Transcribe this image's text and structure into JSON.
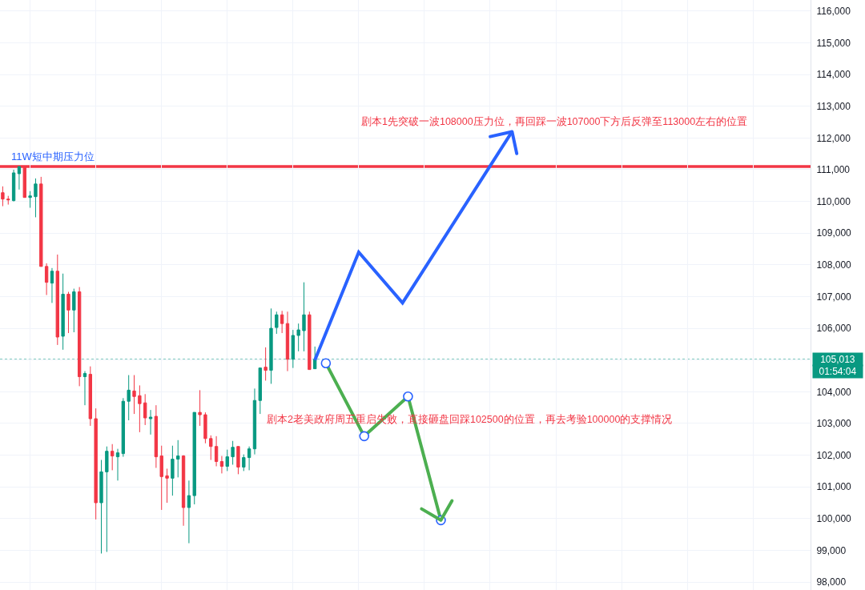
{
  "chart_data": {
    "type": "candlestick",
    "categories": [
      null,
      null,
      null,
      null,
      null,
      null,
      null,
      null,
      null,
      null,
      null,
      null,
      null,
      null,
      null,
      null,
      null,
      null,
      null,
      null,
      null,
      null,
      null,
      null,
      null,
      null,
      null,
      null,
      null,
      null,
      null,
      null,
      null,
      null,
      null,
      null,
      null,
      null,
      null,
      null,
      null,
      null,
      null,
      null,
      null,
      null,
      null,
      null,
      null,
      null,
      null,
      null,
      null,
      null,
      null,
      null,
      null,
      null,
      null,
      null,
      null,
      null,
      null,
      null,
      null,
      null,
      null,
      null,
      null,
      null,
      null,
      null,
      null,
      null,
      null,
      null,
      null,
      null,
      null,
      null,
      null,
      null,
      null,
      null,
      null,
      null,
      null,
      null,
      null,
      null,
      null,
      null,
      null,
      null,
      null,
      null,
      null,
      null,
      null,
      null,
      null,
      null,
      null,
      null,
      null,
      null,
      null,
      null,
      null,
      null,
      null,
      null,
      null,
      null,
      null,
      null,
      null,
      null,
      null,
      null,
      null,
      null,
      null,
      null,
      null,
      null,
      null,
      null,
      null,
      null,
      null,
      null,
      null,
      null,
      null,
      null,
      null,
      null,
      null,
      null,
      null,
      null,
      null,
      null,
      null,
      null,
      null,
      null
    ],
    "ohlc": [
      [
        110275,
        110475,
        109850,
        110075
      ],
      [
        110075,
        110175,
        109900,
        110050
      ],
      [
        110025,
        111000,
        110000,
        110900
      ],
      [
        110875,
        111100,
        110375,
        111100
      ],
      [
        111100,
        111125,
        110125,
        110125
      ],
      [
        110125,
        110325,
        109800,
        110175
      ],
      [
        110150,
        110725,
        109500,
        110550
      ],
      [
        110550,
        110775,
        107950,
        107950
      ],
      [
        107950,
        108050,
        107050,
        107450
      ],
      [
        107425,
        107900,
        106800,
        107800
      ],
      [
        107800,
        108325,
        105475,
        105725
      ],
      [
        105750,
        107725,
        105325,
        107075
      ],
      [
        107075,
        107150,
        105850,
        106575
      ],
      [
        106575,
        107250,
        105875,
        107150
      ],
      [
        107150,
        107300,
        104175,
        104475
      ],
      [
        104475,
        104650,
        103575,
        104575
      ],
      [
        104550,
        104800,
        102925,
        103150
      ],
      [
        103150,
        103475,
        99975,
        100500
      ],
      [
        100500,
        101850,
        98900,
        101475
      ],
      [
        101475,
        102275,
        98950,
        102125
      ],
      [
        102125,
        102350,
        101525,
        101975
      ],
      [
        101950,
        102200,
        101200,
        102075
      ],
      [
        102050,
        103800,
        101950,
        103700
      ],
      [
        103700,
        104525,
        103100,
        104050
      ],
      [
        104025,
        104525,
        103300,
        103850
      ],
      [
        103875,
        104200,
        102725,
        103625
      ],
      [
        103650,
        103925,
        102950,
        103175
      ],
      [
        103150,
        103425,
        102650,
        103200
      ],
      [
        103225,
        103575,
        101600,
        101950
      ],
      [
        101975,
        102300,
        100275,
        101325
      ],
      [
        101350,
        101575,
        100500,
        101275
      ],
      [
        101275,
        102300,
        100725,
        101875
      ],
      [
        101875,
        102475,
        101300,
        101975
      ],
      [
        101975,
        102000,
        99775,
        100350
      ],
      [
        100350,
        101200,
        99225,
        100725
      ],
      [
        100725,
        103350,
        100450,
        103350
      ],
      [
        103350,
        104050,
        102925,
        103275
      ],
      [
        103275,
        103350,
        102375,
        102525
      ],
      [
        102525,
        102625,
        101850,
        102275
      ],
      [
        102275,
        102600,
        101650,
        101800
      ],
      [
        101800,
        101975,
        101425,
        101650
      ],
      [
        101650,
        102175,
        101500,
        101950
      ],
      [
        101950,
        102450,
        101700,
        102250
      ],
      [
        102275,
        102275,
        101400,
        101625
      ],
      [
        101625,
        102025,
        101500,
        101925
      ],
      [
        101925,
        102275,
        101525,
        102200
      ],
      [
        102200,
        104100,
        102025,
        103725
      ],
      [
        103725,
        104750,
        103300,
        104750
      ],
      [
        104775,
        105400,
        104350,
        104675
      ],
      [
        104675,
        106625,
        104250,
        106000
      ],
      [
        106025,
        106525,
        105825,
        106425
      ],
      [
        106425,
        106550,
        105850,
        106150
      ],
      [
        106150,
        106525,
        104650,
        105025
      ],
      [
        105025,
        105950,
        104750,
        105775
      ],
      [
        105775,
        106150,
        105275,
        105950
      ],
      [
        105925,
        107450,
        105275,
        106425
      ],
      [
        106425,
        106525,
        104700,
        104700
      ],
      [
        104725,
        105425,
        104725,
        105013
      ],
      null,
      null,
      null,
      null,
      null,
      null,
      null,
      null,
      null,
      null,
      null,
      null,
      null,
      null,
      null,
      null,
      null,
      null,
      null,
      null,
      null,
      null,
      null,
      null,
      null,
      null,
      null,
      null,
      null,
      null,
      null,
      null,
      null,
      null,
      null,
      null,
      null,
      null,
      null,
      null,
      null,
      null,
      null,
      null,
      null,
      null,
      null,
      null,
      null,
      null,
      null,
      null,
      null,
      null,
      null,
      null,
      null,
      null,
      null,
      null,
      null,
      null,
      null,
      null,
      null,
      null,
      null,
      null,
      null,
      null,
      null,
      null,
      null,
      null,
      null,
      null,
      null,
      null,
      null,
      null,
      null,
      null,
      null,
      null,
      null,
      null,
      null,
      null,
      null,
      null
    ],
    "colors": [
      "#f23645",
      "#f23645",
      "#089981",
      "#089981",
      "#f23645",
      "#089981",
      "#089981",
      "#f23645",
      "#f23645",
      "#089981",
      "#f23645",
      "#089981",
      "#f23645",
      "#089981",
      "#f23645",
      "#089981",
      "#f23645",
      "#f23645",
      "#089981",
      "#089981",
      "#f23645",
      "#089981",
      "#089981",
      "#089981",
      "#f23645",
      "#f23645",
      "#f23645",
      "#089981",
      "#f23645",
      "#f23645",
      "#f23645",
      "#089981",
      "#089981",
      "#f23645",
      "#089981",
      "#089981",
      "#f23645",
      "#f23645",
      "#f23645",
      "#f23645",
      "#f23645",
      "#089981",
      "#089981",
      "#f23645",
      "#089981",
      "#089981",
      "#089981",
      "#089981",
      "#f23645",
      "#089981",
      "#089981",
      "#f23645",
      "#f23645",
      "#089981",
      "#089981",
      "#089981",
      "#f23645",
      "#089981",
      null,
      null,
      null,
      null,
      null,
      null,
      null,
      null,
      null,
      null,
      null,
      null,
      null,
      null,
      null,
      null,
      null,
      null,
      null,
      null,
      null,
      null,
      null,
      null,
      null,
      null,
      null,
      null,
      null,
      null,
      null,
      null,
      null,
      null,
      null,
      null,
      null,
      null,
      null,
      null,
      null,
      null,
      null,
      null,
      null,
      null,
      null,
      null,
      null,
      null,
      null,
      null,
      null,
      null,
      null,
      null,
      null,
      null,
      null,
      null,
      null,
      null,
      null,
      null,
      null,
      null,
      null,
      null,
      null,
      null,
      null,
      null,
      null,
      null,
      null,
      null,
      null,
      null,
      null,
      null,
      null,
      null,
      null,
      null,
      null,
      null,
      null,
      null,
      null,
      null
    ],
    "series": [
      {
        "type": "line",
        "color": "#2962ff",
        "values": [
          null,
          null,
          null,
          null,
          null,
          null,
          null,
          null,
          null,
          null,
          null,
          null,
          null,
          null,
          null,
          null,
          null,
          null,
          null,
          null,
          null,
          null,
          null,
          null,
          null,
          null,
          null,
          null,
          null,
          null,
          null,
          null,
          null,
          null,
          null,
          null,
          null,
          null,
          null,
          null,
          null,
          null,
          null,
          null,
          null,
          null,
          null,
          null,
          null,
          null,
          null,
          null,
          null,
          null,
          null,
          null,
          null,
          105000,
          null,
          null,
          null,
          null,
          null,
          null,
          null,
          108400,
          null,
          null,
          null,
          null,
          null,
          null,
          null,
          106800,
          null,
          null,
          null,
          null,
          null,
          null,
          null,
          null,
          null,
          null,
          null,
          null,
          null,
          null,
          null,
          null,
          null,
          null,
          null,
          112200,
          null,
          null,
          null,
          null,
          null,
          null,
          null,
          null,
          null,
          null,
          null,
          null,
          null,
          null,
          null,
          null,
          null,
          null,
          null,
          null,
          null,
          null,
          null,
          null,
          null,
          null,
          null,
          null,
          null,
          null,
          null,
          null,
          null,
          null,
          null,
          null,
          null,
          null,
          null,
          null,
          null,
          null,
          null,
          null,
          null,
          null,
          null,
          null,
          null,
          null,
          null,
          null,
          null,
          null
        ]
      },
      {
        "type": "line",
        "color": "#4caf50",
        "marker": "circle",
        "values": [
          null,
          null,
          null,
          null,
          null,
          null,
          null,
          null,
          null,
          null,
          null,
          null,
          null,
          null,
          null,
          null,
          null,
          null,
          null,
          null,
          null,
          null,
          null,
          null,
          null,
          null,
          null,
          null,
          null,
          null,
          null,
          null,
          null,
          null,
          null,
          null,
          null,
          null,
          null,
          null,
          null,
          null,
          null,
          null,
          null,
          null,
          null,
          null,
          null,
          null,
          null,
          null,
          null,
          null,
          null,
          null,
          null,
          null,
          null,
          104900,
          null,
          null,
          null,
          null,
          null,
          null,
          102600,
          null,
          null,
          null,
          null,
          null,
          null,
          null,
          103850,
          null,
          null,
          null,
          null,
          null,
          99950,
          null,
          null,
          null,
          null,
          null,
          null,
          null,
          null,
          null,
          null,
          null,
          null,
          null,
          null,
          null,
          null,
          null,
          null,
          null,
          null,
          null,
          null,
          null,
          null,
          null,
          null,
          null,
          null,
          null,
          null,
          null,
          null,
          null,
          null,
          null,
          null,
          null,
          null,
          null,
          null,
          null,
          null,
          null,
          null,
          null,
          null,
          null,
          null,
          null,
          null,
          null,
          null,
          null,
          null,
          null,
          null,
          null,
          null,
          null,
          null,
          null,
          null,
          null,
          null,
          null,
          null,
          null
        ]
      }
    ],
    "ylim": [
      97750,
      116350
    ],
    "yticks": [
      {
        "value": 98000,
        "label": "98,000"
      },
      {
        "value": 99000,
        "label": "99,000"
      },
      {
        "value": 100000,
        "label": "100,000"
      },
      {
        "value": 101000,
        "label": "101,000"
      },
      {
        "value": 102000,
        "label": "102,000"
      },
      {
        "value": 103000,
        "label": "103,000"
      },
      {
        "value": 104000,
        "label": "104,000"
      },
      {
        "value": 105000,
        "label": null
      },
      {
        "value": 106000,
        "label": "106,000"
      },
      {
        "value": 107000,
        "label": "107,000"
      },
      {
        "value": 108000,
        "label": "108,000"
      },
      {
        "value": 109000,
        "label": "109,000"
      },
      {
        "value": 110000,
        "label": "110,000"
      },
      {
        "value": 111000,
        "label": "111,000"
      },
      {
        "value": 112000,
        "label": "112,000"
      },
      {
        "value": 113000,
        "label": "113,000"
      },
      {
        "value": 114000,
        "label": "114,000"
      },
      {
        "value": 115000,
        "label": "115,000"
      },
      {
        "value": 116000,
        "label": "116,000"
      }
    ],
    "ref_lines": [
      {
        "axis": "y",
        "value": 111100,
        "label": "11W短中期压力位",
        "color": "#f23645",
        "line_style": "solid"
      },
      {
        "axis": "y",
        "value": 105013,
        "label": "105,013",
        "color": "#089981",
        "line_style": "dotted"
      }
    ],
    "annotations": [
      "剧本1先突破一波108000压力位，再回踩一波107000下方后反弹至113000左右的位置",
      "剧本2老美政府周五重启失败，直接砸盘回踩102500的位置，再去考验100000的支撑情况",
      "01:54:04"
    ],
    "grid": true,
    "tick_labels": "y"
  }
}
